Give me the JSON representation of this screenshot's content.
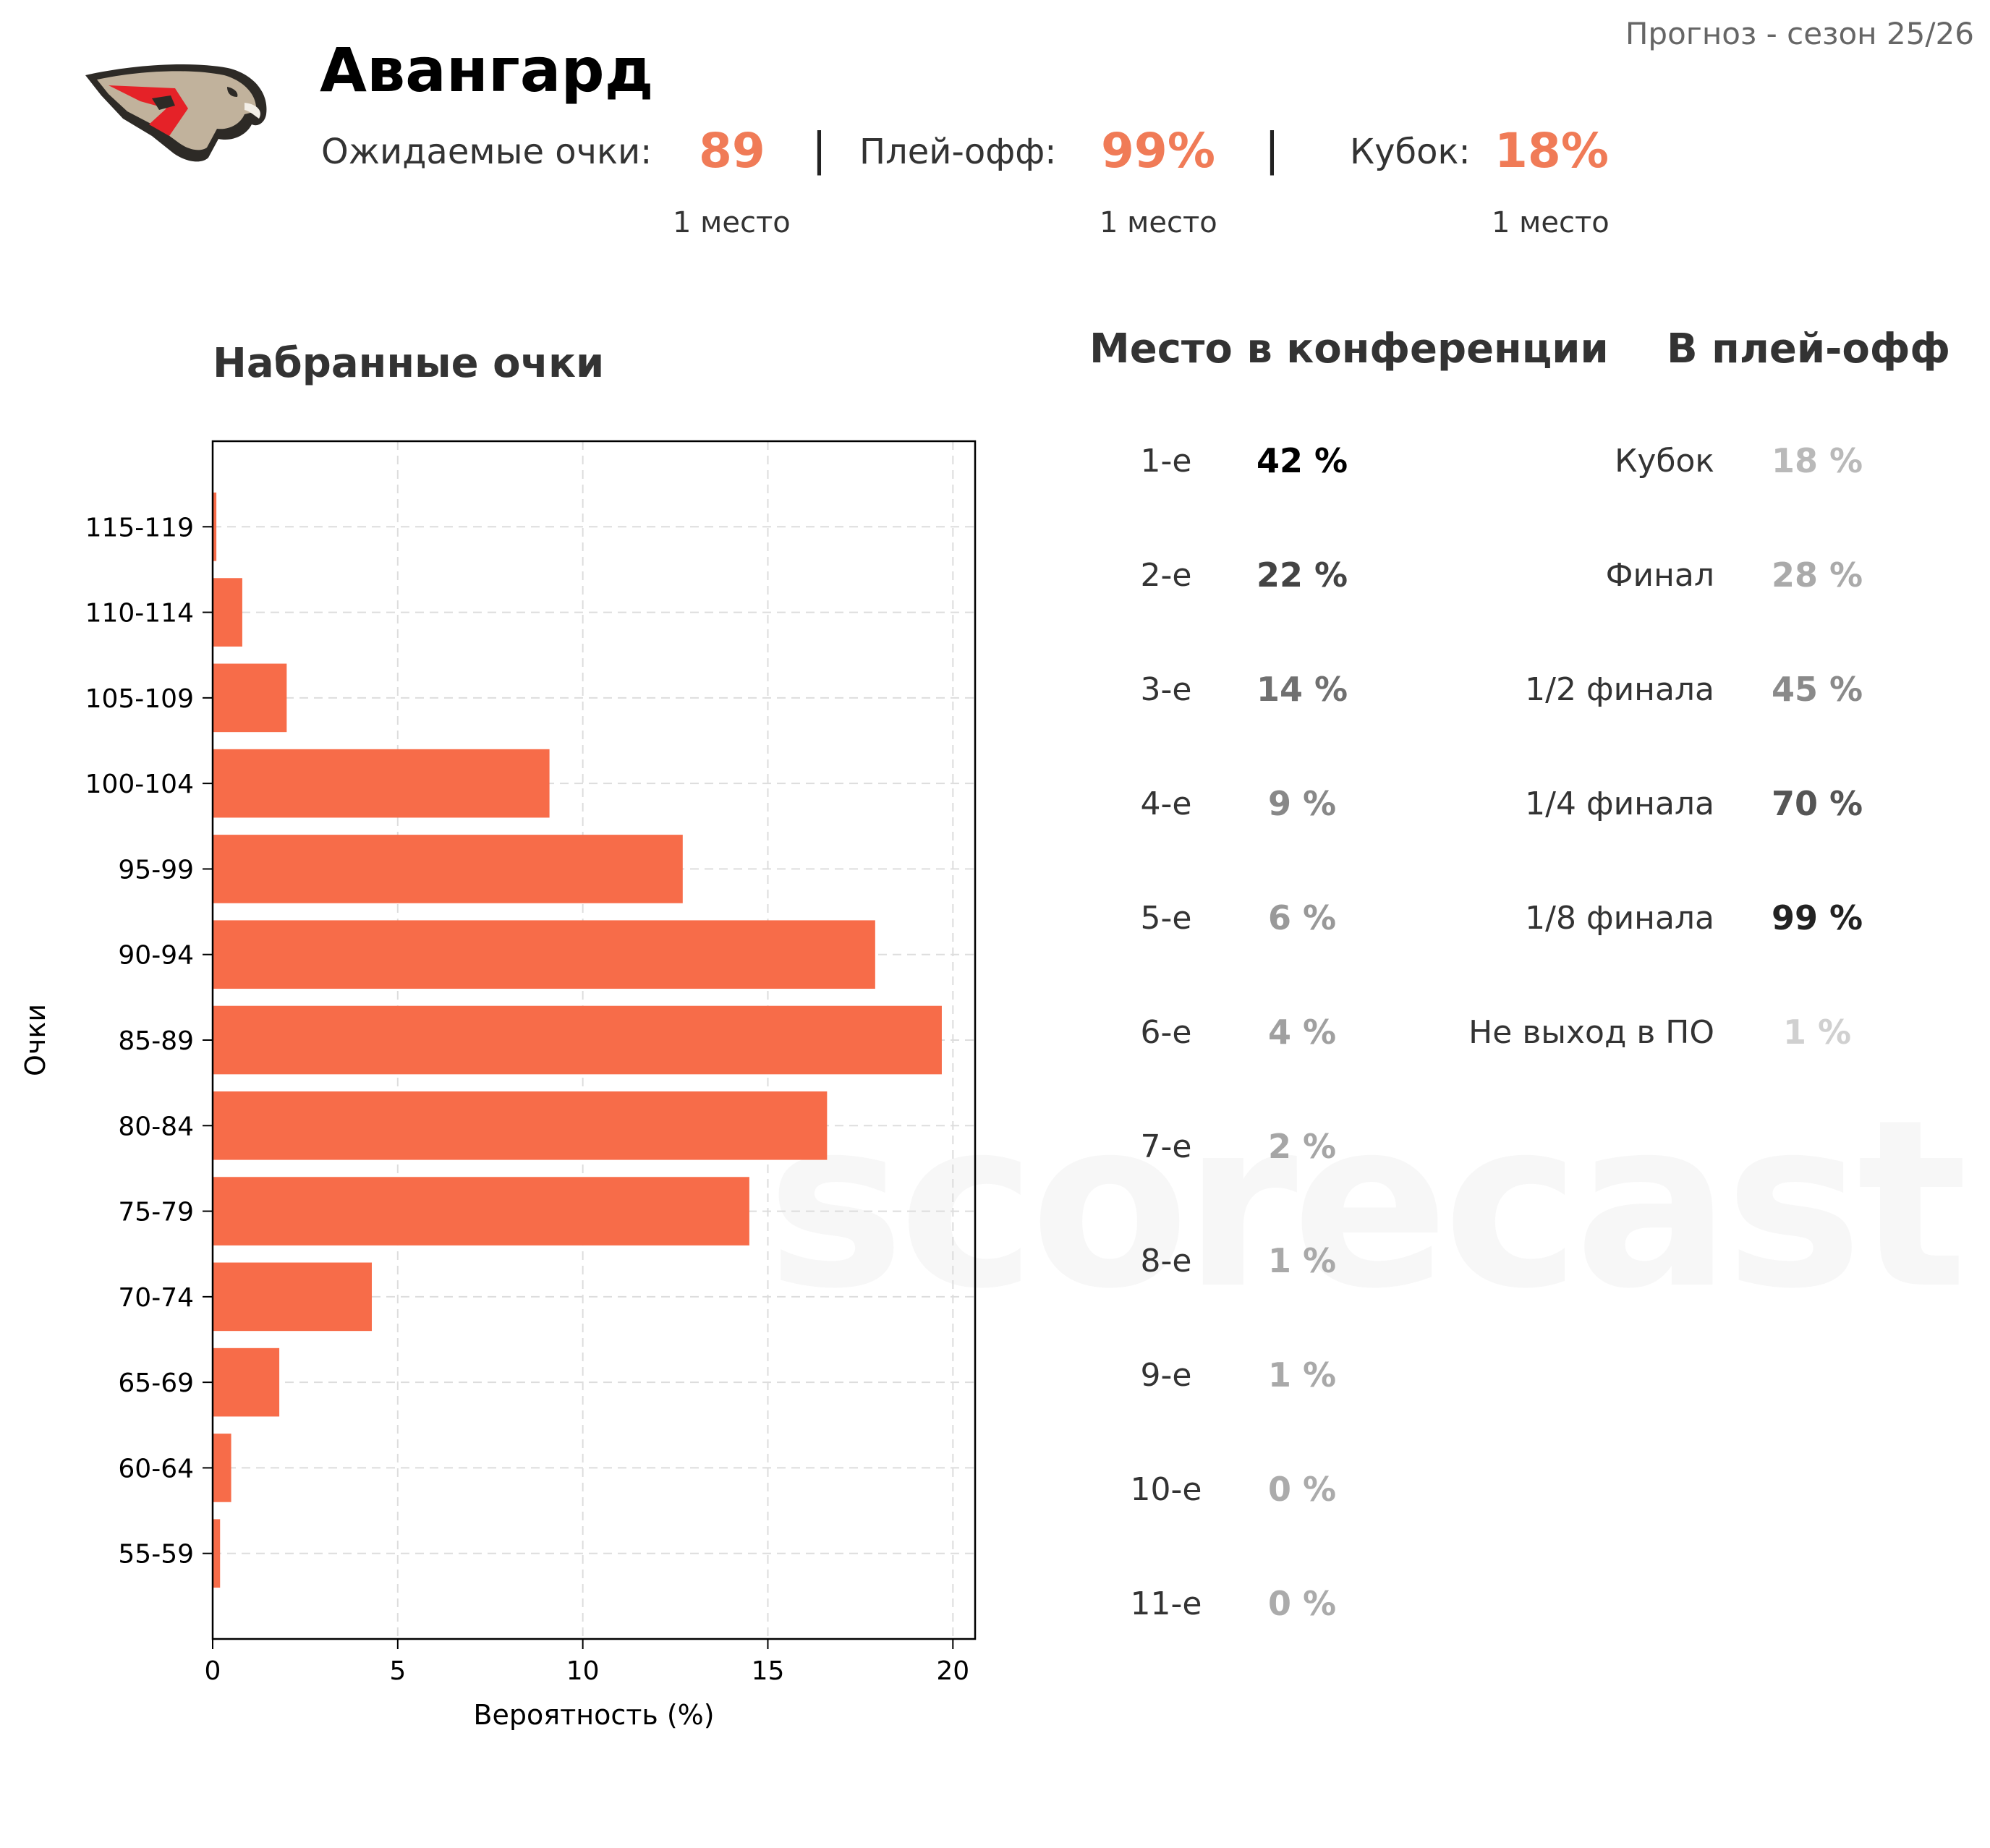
{
  "season_label": "Прогноз - сезон 25/26",
  "team": {
    "name": "Авангард",
    "colors": {
      "accent": "#f07b57",
      "logo_red": "#e52228",
      "logo_beige": "#c1b29c",
      "logo_dark": "#2d2a26"
    }
  },
  "stats": {
    "points": {
      "label": "Ожидаемые очки:",
      "value": "89",
      "rank": "1 место"
    },
    "playoff": {
      "label": "Плей-офф:",
      "value": "99%",
      "rank": "1 место"
    },
    "cup": {
      "label": "Кубок:",
      "value": "18%",
      "rank": "1 место"
    },
    "separator": "|"
  },
  "titles": {
    "points_chart": "Набранные очки",
    "conference": "Место в конференции",
    "playoffs": "В плей-офф"
  },
  "conference_places": [
    {
      "place": "1-е",
      "prob": "42 %",
      "color": "#000000"
    },
    {
      "place": "2-е",
      "prob": "22 %",
      "color": "#444444"
    },
    {
      "place": "3-е",
      "prob": "14 %",
      "color": "#707070"
    },
    {
      "place": "4-е",
      "prob": "9 %",
      "color": "#888888"
    },
    {
      "place": "5-е",
      "prob": "6 %",
      "color": "#999999"
    },
    {
      "place": "6-е",
      "prob": "4 %",
      "color": "#a0a0a0"
    },
    {
      "place": "7-е",
      "prob": "2 %",
      "color": "#a6a6a6"
    },
    {
      "place": "8-е",
      "prob": "1 %",
      "color": "#a9a9a9"
    },
    {
      "place": "9-е",
      "prob": "1 %",
      "color": "#a9a9a9"
    },
    {
      "place": "10-е",
      "prob": "0 %",
      "color": "#ababab"
    },
    {
      "place": "11-е",
      "prob": "0 %",
      "color": "#ababab"
    }
  ],
  "playoff_rounds": [
    {
      "round": "Кубок",
      "prob": "18 %",
      "color": "#b9b9b9"
    },
    {
      "round": "Финал",
      "prob": "28 %",
      "color": "#aaaaaa"
    },
    {
      "round": "1/2 финала",
      "prob": "45 %",
      "color": "#8a8a8a"
    },
    {
      "round": "1/4 финала",
      "prob": "70 %",
      "color": "#555555"
    },
    {
      "round": "1/8 финала",
      "prob": "99 %",
      "color": "#222222"
    },
    {
      "round": "Не выход в ПО",
      "prob": "1 %",
      "color": "#d0d0d0"
    }
  ],
  "watermark": "scorecast",
  "chart_data": {
    "type": "bar",
    "orientation": "horizontal",
    "title": "Набранные очки",
    "xlabel": "Вероятность (%)",
    "ylabel": "Очки",
    "categories": [
      "115-119",
      "110-114",
      "105-109",
      "100-104",
      "95-99",
      "90-94",
      "85-89",
      "80-84",
      "75-79",
      "70-74",
      "65-69",
      "60-64",
      "55-59"
    ],
    "values": [
      0.1,
      0.8,
      2.0,
      9.1,
      12.7,
      17.9,
      19.7,
      16.6,
      14.5,
      4.3,
      1.8,
      0.5,
      0.2
    ],
    "xlim": [
      0,
      20.6
    ],
    "xticks": [
      0,
      5,
      10,
      15,
      20
    ],
    "grid": true,
    "bar_color": "#f76c49"
  }
}
